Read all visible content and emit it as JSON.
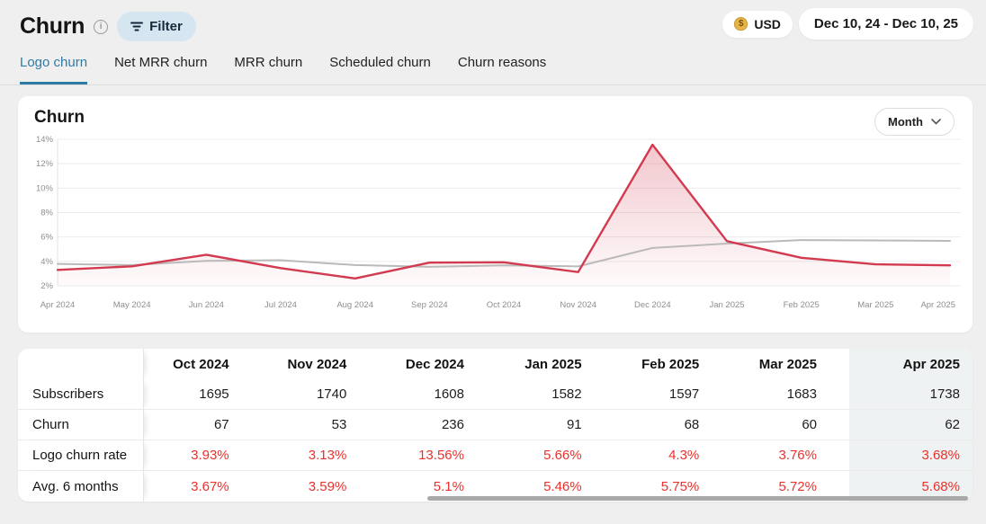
{
  "page": {
    "title": "Churn"
  },
  "header": {
    "filter_label": "Filter",
    "currency_label": "USD",
    "currency_icon_glyph": "$",
    "info_icon_glyph": "i",
    "date_range": "Dec 10, 24 - Dec 10, 25"
  },
  "tabs": [
    {
      "label": "Logo churn",
      "active": true
    },
    {
      "label": "Net MRR churn",
      "active": false
    },
    {
      "label": "MRR churn",
      "active": false
    },
    {
      "label": "Scheduled churn",
      "active": false
    },
    {
      "label": "Churn reasons",
      "active": false
    }
  ],
  "chart_card": {
    "title": "Churn",
    "period_selector_value": "Month"
  },
  "chart_data": {
    "type": "line",
    "title": "Churn",
    "x": [
      "Apr 2024",
      "May 2024",
      "Jun 2024",
      "Jul 2024",
      "Aug 2024",
      "Sep 2024",
      "Oct 2024",
      "Nov 2024",
      "Dec 2024",
      "Jan 2025",
      "Feb 2025",
      "Mar 2025",
      "Apr 2025"
    ],
    "series": [
      {
        "name": "Logo churn rate",
        "color": "#d23a50",
        "area_fill": true,
        "values": [
          3.3,
          3.6,
          4.55,
          3.45,
          2.6,
          3.9,
          3.93,
          3.13,
          13.56,
          5.66,
          4.3,
          3.76,
          3.68
        ]
      },
      {
        "name": "Avg. 6 months",
        "color": "#bababa",
        "area_fill": false,
        "values": [
          3.8,
          3.7,
          4.05,
          4.1,
          3.7,
          3.55,
          3.67,
          3.59,
          5.1,
          5.46,
          5.75,
          5.72,
          5.68
        ]
      }
    ],
    "ylim": [
      2,
      14
    ],
    "yticks": [
      2,
      4,
      6,
      8,
      10,
      12,
      14
    ],
    "ytick_suffix": "%",
    "grid": true,
    "legend_position": "none"
  },
  "table": {
    "columns": [
      "Oct 2024",
      "Nov 2024",
      "Dec 2024",
      "Jan 2025",
      "Feb 2025",
      "Mar 2025",
      "Apr 2025"
    ],
    "highlighted_column": "Apr 2025",
    "rows": [
      {
        "label": "Subscribers",
        "red": false,
        "values": [
          "1695",
          "1740",
          "1608",
          "1582",
          "1597",
          "1683",
          "1738"
        ]
      },
      {
        "label": "Churn",
        "red": false,
        "values": [
          "67",
          "53",
          "236",
          "91",
          "68",
          "60",
          "62"
        ]
      },
      {
        "label": "Logo churn rate",
        "red": true,
        "values": [
          "3.93%",
          "3.13%",
          "13.56%",
          "5.66%",
          "4.3%",
          "3.76%",
          "3.68%"
        ]
      },
      {
        "label": "Avg. 6 months",
        "red": true,
        "values": [
          "3.67%",
          "3.59%",
          "5.1%",
          "5.46%",
          "5.75%",
          "5.72%",
          "5.68%"
        ]
      }
    ]
  },
  "colors": {
    "accent_teal": "#2e7ba6",
    "churn_red": "#d23a50",
    "table_red": "#e8322d",
    "avg_gray": "#bababa",
    "axis_text": "#8e8e8e",
    "grid_line": "#ececec",
    "page_bg": "#efefef",
    "highlight_col_bg": "#eef2f3",
    "filter_bg": "#d6e6f1"
  }
}
